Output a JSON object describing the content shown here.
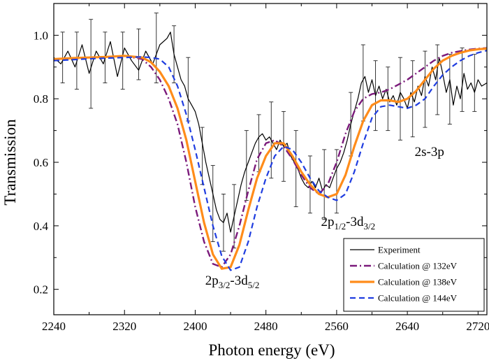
{
  "chart_data": {
    "type": "line",
    "xlabel": "Photon energy (eV)",
    "ylabel": "Transmission",
    "xlim": [
      2240,
      2730
    ],
    "ylim": [
      0.12,
      1.1
    ],
    "xticks": [
      2240,
      2320,
      2400,
      2480,
      2560,
      2640,
      2720
    ],
    "yticks": [
      0.2,
      0.4,
      0.6,
      0.8,
      1.0
    ],
    "ytick_labels": [
      "0.2",
      "0.4",
      "0.6",
      "0.8",
      "1.0"
    ],
    "grid": false,
    "legend_position": "bottom-right",
    "series": [
      {
        "name": "Experiment",
        "color": "#000000",
        "style": "solid",
        "x": [
          2240,
          2248,
          2256,
          2264,
          2272,
          2280,
          2288,
          2296,
          2304,
          2312,
          2320,
          2328,
          2336,
          2344,
          2352,
          2360,
          2368,
          2372,
          2376,
          2380,
          2384,
          2388,
          2392,
          2396,
          2400,
          2404,
          2408,
          2412,
          2416,
          2420,
          2424,
          2428,
          2432,
          2436,
          2440,
          2444,
          2448,
          2452,
          2456,
          2460,
          2464,
          2468,
          2472,
          2476,
          2480,
          2484,
          2488,
          2492,
          2496,
          2500,
          2504,
          2508,
          2512,
          2516,
          2520,
          2524,
          2528,
          2532,
          2536,
          2540,
          2544,
          2548,
          2552,
          2556,
          2560,
          2564,
          2568,
          2572,
          2576,
          2580,
          2584,
          2588,
          2592,
          2596,
          2600,
          2604,
          2608,
          2612,
          2616,
          2620,
          2624,
          2628,
          2632,
          2636,
          2640,
          2644,
          2648,
          2652,
          2656,
          2660,
          2664,
          2668,
          2672,
          2676,
          2680,
          2684,
          2688,
          2692,
          2696,
          2700,
          2704,
          2708,
          2712,
          2716,
          2720,
          2724,
          2730
        ],
        "y": [
          0.93,
          0.91,
          0.95,
          0.9,
          0.97,
          0.88,
          0.95,
          0.91,
          0.98,
          0.87,
          0.96,
          0.92,
          0.89,
          0.95,
          0.91,
          0.97,
          0.99,
          1.01,
          0.94,
          0.9,
          0.86,
          0.84,
          0.8,
          0.78,
          0.76,
          0.72,
          0.66,
          0.6,
          0.55,
          0.5,
          0.45,
          0.42,
          0.41,
          0.44,
          0.38,
          0.43,
          0.48,
          0.53,
          0.57,
          0.6,
          0.63,
          0.66,
          0.68,
          0.69,
          0.67,
          0.68,
          0.66,
          0.64,
          0.67,
          0.65,
          0.66,
          0.62,
          0.6,
          0.58,
          0.55,
          0.53,
          0.52,
          0.54,
          0.52,
          0.55,
          0.51,
          0.53,
          0.52,
          0.55,
          0.58,
          0.6,
          0.63,
          0.67,
          0.72,
          0.76,
          0.8,
          0.85,
          0.87,
          0.82,
          0.86,
          0.81,
          0.84,
          0.8,
          0.83,
          0.79,
          0.81,
          0.78,
          0.82,
          0.8,
          0.77,
          0.82,
          0.79,
          0.84,
          0.81,
          0.87,
          0.84,
          0.9,
          0.86,
          0.93,
          0.88,
          0.82,
          0.86,
          0.78,
          0.84,
          0.8,
          0.88,
          0.83,
          0.85,
          0.82,
          0.86,
          0.84,
          0.85
        ]
      },
      {
        "name": "Calculation @ 132eV",
        "color": "#7b1a7b",
        "style": "dashdot",
        "x": [
          2240,
          2260,
          2280,
          2300,
          2320,
          2340,
          2350,
          2360,
          2370,
          2380,
          2390,
          2400,
          2410,
          2420,
          2430,
          2440,
          2450,
          2460,
          2470,
          2480,
          2490,
          2500,
          2510,
          2520,
          2530,
          2540,
          2550,
          2560,
          2570,
          2580,
          2590,
          2600,
          2610,
          2620,
          2630,
          2640,
          2650,
          2660,
          2670,
          2680,
          2690,
          2700,
          2710,
          2720,
          2730
        ],
        "y": [
          0.925,
          0.928,
          0.93,
          0.932,
          0.935,
          0.925,
          0.9,
          0.86,
          0.8,
          0.72,
          0.6,
          0.46,
          0.35,
          0.28,
          0.27,
          0.31,
          0.4,
          0.51,
          0.61,
          0.66,
          0.67,
          0.65,
          0.61,
          0.56,
          0.52,
          0.5,
          0.53,
          0.6,
          0.69,
          0.76,
          0.8,
          0.815,
          0.82,
          0.83,
          0.845,
          0.86,
          0.88,
          0.9,
          0.92,
          0.935,
          0.945,
          0.95,
          0.955,
          0.958,
          0.96
        ]
      },
      {
        "name": "Calculation @ 138eV",
        "color": "#ff8c1a",
        "style": "solid-thick",
        "x": [
          2240,
          2260,
          2280,
          2300,
          2320,
          2340,
          2350,
          2360,
          2370,
          2380,
          2390,
          2400,
          2410,
          2420,
          2430,
          2440,
          2450,
          2460,
          2470,
          2480,
          2490,
          2500,
          2510,
          2520,
          2530,
          2540,
          2550,
          2560,
          2570,
          2580,
          2590,
          2600,
          2610,
          2620,
          2630,
          2640,
          2650,
          2660,
          2670,
          2680,
          2690,
          2700,
          2710,
          2720,
          2730
        ],
        "y": [
          0.925,
          0.928,
          0.93,
          0.932,
          0.935,
          0.93,
          0.915,
          0.885,
          0.84,
          0.77,
          0.67,
          0.54,
          0.41,
          0.31,
          0.265,
          0.27,
          0.34,
          0.45,
          0.55,
          0.62,
          0.66,
          0.66,
          0.62,
          0.57,
          0.53,
          0.5,
          0.49,
          0.5,
          0.56,
          0.65,
          0.73,
          0.78,
          0.795,
          0.795,
          0.79,
          0.8,
          0.825,
          0.86,
          0.895,
          0.92,
          0.935,
          0.945,
          0.952,
          0.956,
          0.958
        ]
      },
      {
        "name": "Calculation @ 144eV",
        "color": "#1f3de0",
        "style": "dashed",
        "x": [
          2240,
          2260,
          2280,
          2300,
          2320,
          2340,
          2350,
          2360,
          2370,
          2380,
          2390,
          2400,
          2410,
          2420,
          2430,
          2440,
          2450,
          2460,
          2470,
          2480,
          2490,
          2500,
          2510,
          2520,
          2530,
          2540,
          2550,
          2560,
          2570,
          2580,
          2590,
          2600,
          2610,
          2620,
          2630,
          2640,
          2650,
          2660,
          2670,
          2680,
          2690,
          2700,
          2710,
          2720,
          2730
        ],
        "y": [
          0.92,
          0.923,
          0.926,
          0.928,
          0.93,
          0.932,
          0.93,
          0.925,
          0.9,
          0.84,
          0.75,
          0.64,
          0.52,
          0.4,
          0.305,
          0.26,
          0.27,
          0.35,
          0.46,
          0.55,
          0.62,
          0.65,
          0.64,
          0.6,
          0.55,
          0.51,
          0.49,
          0.48,
          0.5,
          0.57,
          0.66,
          0.74,
          0.775,
          0.78,
          0.775,
          0.77,
          0.78,
          0.8,
          0.84,
          0.875,
          0.9,
          0.92,
          0.935,
          0.945,
          0.952
        ]
      }
    ],
    "error_bars": {
      "x": [
        2250,
        2266,
        2282,
        2298,
        2318,
        2336,
        2356,
        2376,
        2392,
        2408,
        2420,
        2432,
        2444,
        2458,
        2472,
        2486,
        2500,
        2514,
        2530,
        2546,
        2560,
        2576,
        2590,
        2604,
        2618,
        2632,
        2646,
        2660,
        2674,
        2688,
        2702,
        2716
      ],
      "y": [
        0.93,
        0.92,
        0.91,
        0.93,
        0.92,
        0.94,
        0.96,
        0.94,
        0.83,
        0.62,
        0.47,
        0.41,
        0.43,
        0.59,
        0.66,
        0.67,
        0.65,
        0.58,
        0.53,
        0.53,
        0.54,
        0.72,
        0.85,
        0.81,
        0.8,
        0.8,
        0.8,
        0.83,
        0.86,
        0.83,
        0.86,
        0.85
      ],
      "err": [
        0.08,
        0.09,
        0.14,
        0.08,
        0.09,
        0.08,
        0.11,
        0.09,
        0.1,
        0.09,
        0.12,
        0.09,
        0.1,
        0.11,
        0.09,
        0.12,
        0.11,
        0.12,
        0.09,
        0.11,
        0.1,
        0.1,
        0.12,
        0.11,
        0.1,
        0.13,
        0.12,
        0.12,
        0.11,
        0.11,
        0.1,
        0.09
      ]
    },
    "annotations": [
      {
        "base": "2p",
        "sub1": "3/2",
        "mid": "-3d",
        "sub2": "5/2",
        "x": 2442,
        "y": 0.215
      },
      {
        "base": "2p",
        "sub1": "1/2",
        "mid": "-3d",
        "sub2": "3/2",
        "x": 2573,
        "y": 0.4
      },
      {
        "base": "2s-3p",
        "sub1": "",
        "mid": "",
        "sub2": "",
        "x": 2665,
        "y": 0.62
      }
    ]
  }
}
